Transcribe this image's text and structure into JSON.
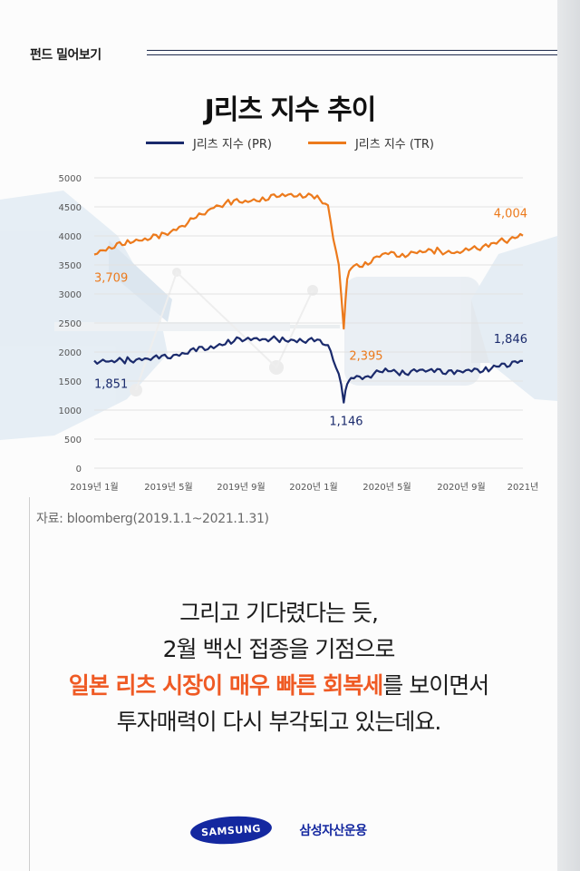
{
  "header": {
    "label": "펀드 밀어보기"
  },
  "chart_data": {
    "type": "line",
    "title": "J리츠 지수 추이",
    "x_labels": [
      "2019년 1월",
      "2019년 5월",
      "2019년 9월",
      "2020년 1월",
      "2020년 5월",
      "2020년 9월",
      "2021년"
    ],
    "ylim": [
      0,
      5000
    ],
    "yticks": [
      0,
      500,
      1000,
      1500,
      2000,
      2500,
      3000,
      3500,
      4000,
      4500,
      5000
    ],
    "grid": true,
    "legend_position": "top-center",
    "series": [
      {
        "name": "J리츠 지수 (PR)",
        "color": "#1a2a6c",
        "points": [
          [
            "2019-01",
            1851
          ],
          [
            "2019-02",
            1840
          ],
          [
            "2019-03",
            1860
          ],
          [
            "2019-04",
            1880
          ],
          [
            "2019-05",
            1900
          ],
          [
            "2019-06",
            1960
          ],
          [
            "2019-07",
            2030
          ],
          [
            "2019-08",
            2100
          ],
          [
            "2019-09",
            2180
          ],
          [
            "2019-10",
            2240
          ],
          [
            "2019-11",
            2230
          ],
          [
            "2019-12",
            2200
          ],
          [
            "2020-01",
            2210
          ],
          [
            "2020-02",
            2180
          ],
          [
            "2020-02-20",
            2120
          ],
          [
            "2020-03-10",
            1650
          ],
          [
            "2020-03-19",
            1146
          ],
          [
            "2020-03-25",
            1500
          ],
          [
            "2020-04",
            1550
          ],
          [
            "2020-05",
            1600
          ],
          [
            "2020-06",
            1680
          ],
          [
            "2020-07",
            1650
          ],
          [
            "2020-08",
            1670
          ],
          [
            "2020-09",
            1680
          ],
          [
            "2020-10",
            1650
          ],
          [
            "2020-11",
            1670
          ],
          [
            "2020-12",
            1720
          ],
          [
            "2021-01-31",
            1846
          ]
        ]
      },
      {
        "name": "J리츠 지수 (TR)",
        "color": "#ec7a1c",
        "points": [
          [
            "2019-01",
            3709
          ],
          [
            "2019-02",
            3800
          ],
          [
            "2019-03",
            3900
          ],
          [
            "2019-04",
            3950
          ],
          [
            "2019-05",
            4000
          ],
          [
            "2019-06",
            4150
          ],
          [
            "2019-07",
            4300
          ],
          [
            "2019-08",
            4500
          ],
          [
            "2019-09",
            4580
          ],
          [
            "2019-10",
            4600
          ],
          [
            "2019-11",
            4650
          ],
          [
            "2019-12",
            4700
          ],
          [
            "2020-01",
            4720
          ],
          [
            "2020-02",
            4650
          ],
          [
            "2020-02-20",
            4500
          ],
          [
            "2020-03-10",
            3500
          ],
          [
            "2020-03-19",
            2395
          ],
          [
            "2020-03-25",
            3300
          ],
          [
            "2020-04",
            3450
          ],
          [
            "2020-05",
            3550
          ],
          [
            "2020-06",
            3700
          ],
          [
            "2020-07",
            3680
          ],
          [
            "2020-08",
            3720
          ],
          [
            "2020-09",
            3750
          ],
          [
            "2020-10",
            3700
          ],
          [
            "2020-11",
            3760
          ],
          [
            "2020-12",
            3850
          ],
          [
            "2021-01-31",
            4004
          ]
        ]
      }
    ],
    "annotations": [
      {
        "series": 1,
        "date": "2019-01",
        "value": 3709,
        "text": "3,709"
      },
      {
        "series": 1,
        "date": "2020-03-19",
        "value": 2395,
        "text": "2,395"
      },
      {
        "series": 1,
        "date": "2021-01-31",
        "value": 4004,
        "text": "4,004"
      },
      {
        "series": 0,
        "date": "2019-01",
        "value": 1851,
        "text": "1,851"
      },
      {
        "series": 0,
        "date": "2020-03-19",
        "value": 1146,
        "text": "1,146"
      },
      {
        "series": 0,
        "date": "2021-01-31",
        "value": 1846,
        "text": "1,846"
      }
    ]
  },
  "source": "자료: bloomberg(2019.1.1~2021.1.31)",
  "message": {
    "line1": "그리고 기다렸다는 듯,",
    "line2": "2월 백신 접종을 기점으로",
    "line3_highlight": "일본 리츠 시장이 매우 빠른 회복세",
    "line3_rest": "를 보이면서",
    "line4": "투자매력이 다시 부각되고 있는데요."
  },
  "footer": {
    "logo_text": "SAMSUNG",
    "brand": "삼성자산운용"
  },
  "colors": {
    "accent": "#ef5a24",
    "navy": "#1a2a6c",
    "orange": "#ec7a1c",
    "brand_blue": "#1428a0"
  }
}
